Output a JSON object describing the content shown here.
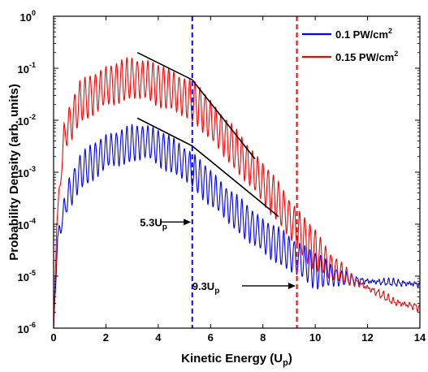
{
  "chart_data": {
    "type": "line",
    "title": "",
    "xlabel": "Kinetic Energy (U",
    "xlabel_sub": "p",
    "xlabel_close": ")",
    "ylabel": "Probability Density (arb. units)",
    "xlim": [
      0,
      14
    ],
    "ylim": [
      1e-06,
      1
    ],
    "yscale": "log",
    "grid": false,
    "legend_position": "top-right",
    "x_ticks": [
      0,
      2,
      4,
      6,
      8,
      10,
      12,
      14
    ],
    "x_tick_labels": [
      "0",
      "2",
      "4",
      "6",
      "8",
      "10",
      "12",
      "14"
    ],
    "y_ticks": [
      {
        "value": 1e-06,
        "base": "10",
        "exp": "-6"
      },
      {
        "value": 1e-05,
        "base": "10",
        "exp": "-5"
      },
      {
        "value": 0.0001,
        "base": "10",
        "exp": "-4"
      },
      {
        "value": 0.001,
        "base": "10",
        "exp": "-3"
      },
      {
        "value": 0.01,
        "base": "10",
        "exp": "-2"
      },
      {
        "value": 0.1,
        "base": "10",
        "exp": "-1"
      },
      {
        "value": 1,
        "base": "10",
        "exp": "0"
      }
    ],
    "series": [
      {
        "name_main": "0.1 PW/cm",
        "name_sup": "2",
        "color": "#0000ff",
        "envelope": [
          [
            0,
            1e-06
          ],
          [
            0.15,
            5e-05
          ],
          [
            0.5,
            0.0003
          ],
          [
            1.0,
            0.001
          ],
          [
            2.0,
            0.0025
          ],
          [
            3.0,
            0.0035
          ],
          [
            3.5,
            0.004
          ],
          [
            4.0,
            0.003
          ],
          [
            5.0,
            0.0015
          ],
          [
            6.0,
            0.0005
          ],
          [
            7.0,
            0.00016
          ],
          [
            8.0,
            6e-05
          ],
          [
            9.0,
            2.8e-05
          ],
          [
            10.0,
            1.3e-05
          ],
          [
            11.0,
            9e-06
          ],
          [
            12.0,
            8e-06
          ],
          [
            13.0,
            7.5e-06
          ],
          [
            14.0,
            7e-06
          ]
        ],
        "oscillation_period": 0.2,
        "oscillation_decades": 0.65
      },
      {
        "name_main": "0.15 PW/cm",
        "name_sup": "2",
        "color": "#ff0000",
        "envelope": [
          [
            0,
            1e-06
          ],
          [
            0.12,
            0.0001
          ],
          [
            0.4,
            0.005
          ],
          [
            1.0,
            0.022
          ],
          [
            2.0,
            0.045
          ],
          [
            3.0,
            0.065
          ],
          [
            3.5,
            0.06
          ],
          [
            4.5,
            0.038
          ],
          [
            5.5,
            0.02
          ],
          [
            6.5,
            0.005
          ],
          [
            7.5,
            0.0013
          ],
          [
            8.5,
            0.0003
          ],
          [
            9.5,
            6e-05
          ],
          [
            10.5,
            1.7e-05
          ],
          [
            11.5,
            8e-06
          ],
          [
            12.5,
            4.5e-06
          ],
          [
            13.0,
            3.2e-06
          ],
          [
            14.0,
            2.5e-06
          ]
        ],
        "oscillation_period": 0.2,
        "oscillation_decades": 0.75
      }
    ],
    "fit_lines": [
      {
        "color": "#000000",
        "points": [
          [
            3.2,
            0.2
          ],
          [
            5.3,
            0.06
          ],
          [
            7.7,
            0.0018
          ]
        ]
      },
      {
        "color": "#000000",
        "points": [
          [
            3.2,
            0.011
          ],
          [
            5.3,
            0.0032
          ],
          [
            8.6,
            0.00014
          ]
        ]
      }
    ],
    "vertical_lines": [
      {
        "x": 5.3,
        "color": "#0000ff",
        "style": "dashed"
      },
      {
        "x": 9.3,
        "color": "#ff0000",
        "style": "dashed"
      }
    ],
    "annotations": [
      {
        "text_main": "5.3U",
        "text_sub": "p",
        "text_x": 3.3,
        "text_y": 0.00011,
        "arrow_from": [
          4.1,
          0.00011
        ],
        "arrow_to": [
          5.25,
          0.00011
        ]
      },
      {
        "text_main": "9.3U",
        "text_sub": "p",
        "text_x": 5.3,
        "text_y": 6.5e-06,
        "arrow_from": [
          7.2,
          6.5e-06
        ],
        "arrow_to": [
          9.25,
          6.5e-06
        ]
      }
    ]
  }
}
